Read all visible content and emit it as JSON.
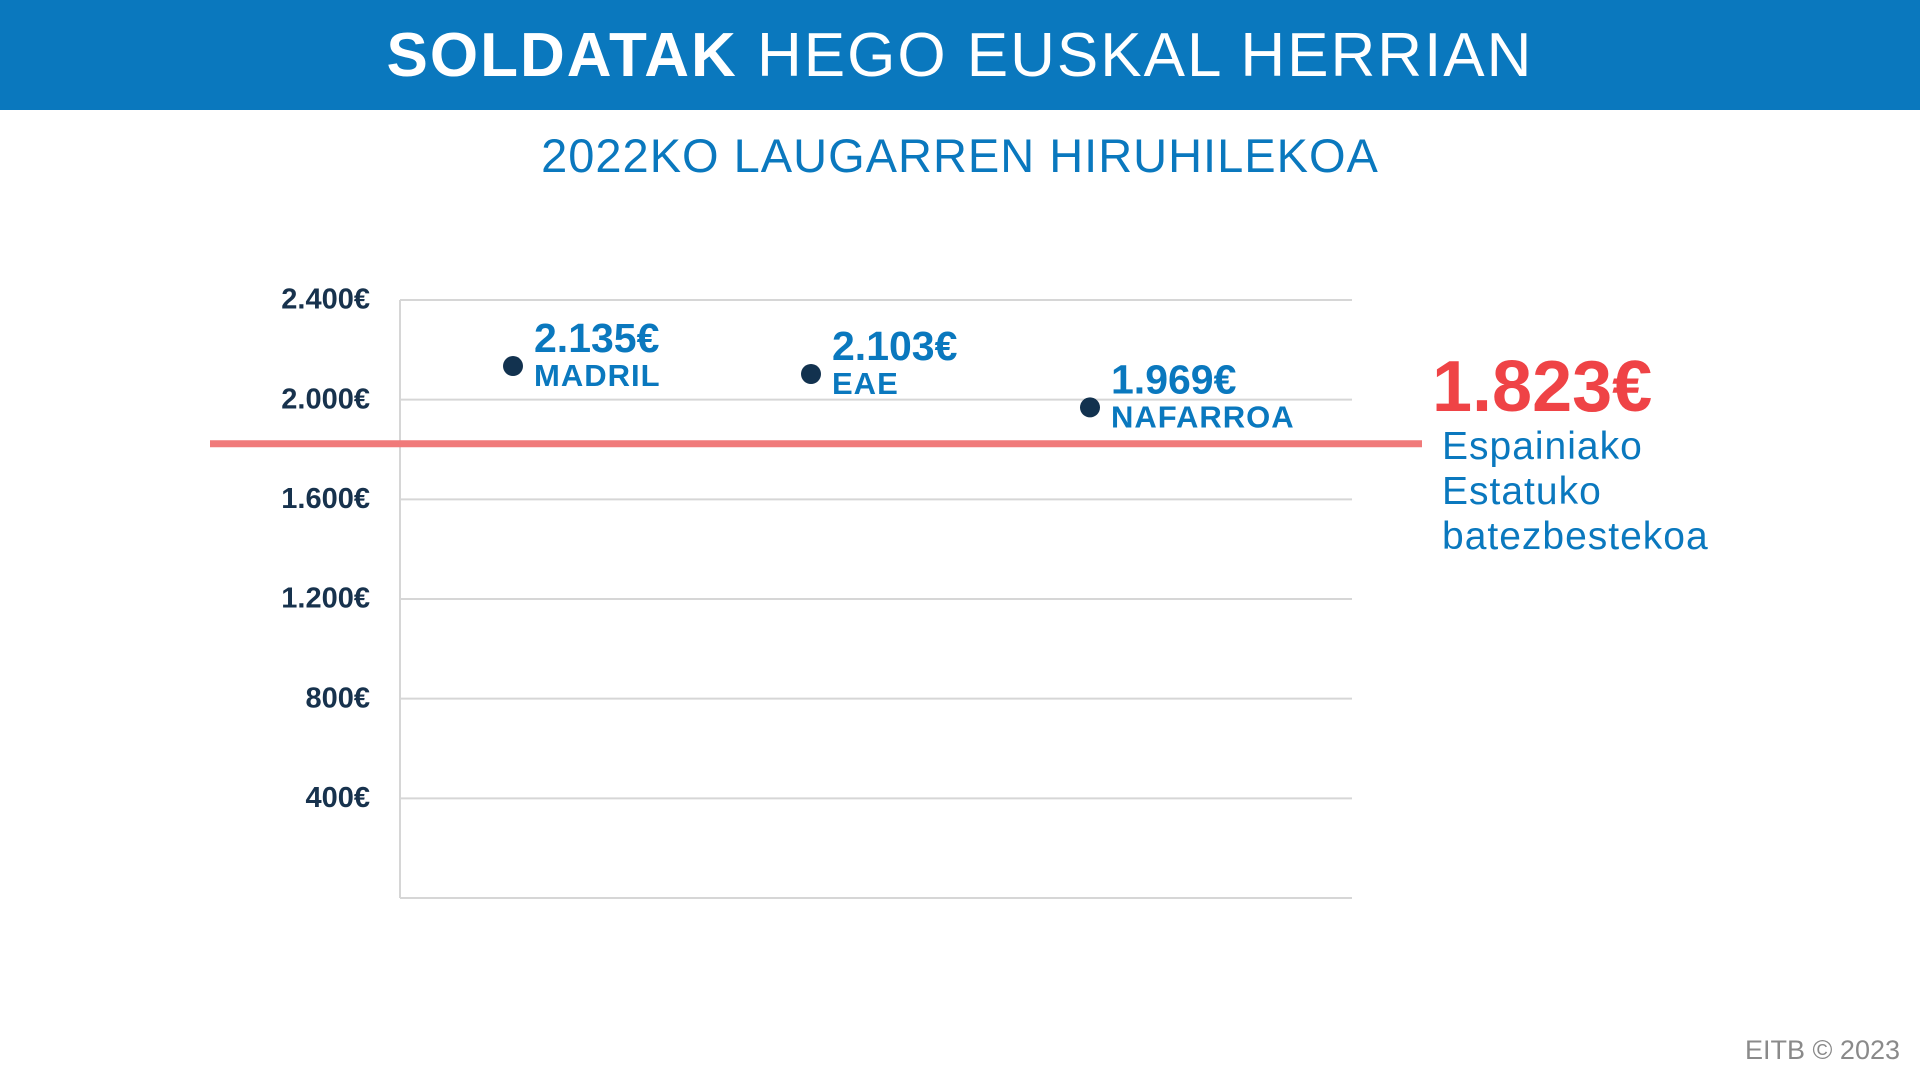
{
  "header": {
    "title_bold": "SOLDATAK",
    "title_rest": "HEGO EUSKAL HERRIAN"
  },
  "subtitle": "2022KO LAUGARREN HIRUHILEKOA",
  "chart_data": {
    "type": "scatter",
    "categories": [
      "MADRIL",
      "EAE",
      "NAFARROA"
    ],
    "values": [
      2135,
      2103,
      1969
    ],
    "value_labels": [
      "2.135€",
      "2.103€",
      "1.969€"
    ],
    "y_ticks": [
      400,
      800,
      1200,
      1600,
      2000,
      2400
    ],
    "y_tick_labels": [
      "400€",
      "800€",
      "1.200€",
      "1.600€",
      "2.000€",
      "2.400€"
    ],
    "ylim": [
      0,
      2400
    ],
    "grid": true,
    "reference_line": {
      "value": 1823,
      "label_value": "1.823€",
      "label_lines": [
        "Espainiako",
        "Estatuko",
        "batezbestekoa"
      ],
      "color": "#f07a7a"
    }
  },
  "colors": {
    "brand_blue": "#0a78be",
    "dot": "#12324f",
    "reference_value": "#ef4346",
    "reference_line": "#f07a7a"
  },
  "copyright": "EITB © 2023"
}
